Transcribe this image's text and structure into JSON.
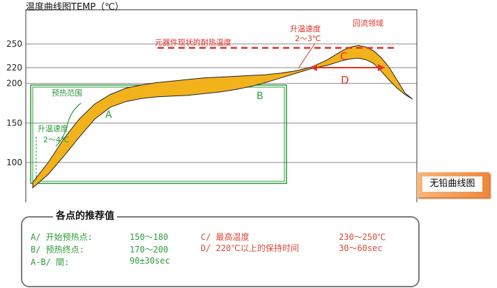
{
  "chart_data": {
    "type": "area",
    "title": "温度曲线图TEMP（℃）",
    "yticks": [
      100,
      150,
      200,
      220,
      250
    ],
    "ylim": [
      50,
      280
    ],
    "band": {
      "upper": [
        [
          0,
          75
        ],
        [
          4,
          100
        ],
        [
          8,
          130
        ],
        [
          12,
          155
        ],
        [
          16,
          174
        ],
        [
          20,
          186
        ],
        [
          24,
          194
        ],
        [
          28,
          198
        ],
        [
          32,
          201
        ],
        [
          36,
          203
        ],
        [
          40,
          205
        ],
        [
          44,
          207
        ],
        [
          48,
          208
        ],
        [
          52,
          209
        ],
        [
          56,
          210
        ],
        [
          60,
          211
        ],
        [
          64,
          213
        ],
        [
          68,
          216
        ],
        [
          72,
          221
        ],
        [
          76,
          230
        ],
        [
          78,
          236
        ],
        [
          80,
          242
        ],
        [
          82,
          246
        ],
        [
          84,
          248
        ],
        [
          86,
          246
        ],
        [
          88,
          241
        ],
        [
          90,
          232
        ],
        [
          92,
          220
        ],
        [
          94,
          204
        ],
        [
          96,
          188
        ],
        [
          98,
          180
        ]
      ],
      "lower": [
        [
          0,
          68
        ],
        [
          4,
          85
        ],
        [
          8,
          108
        ],
        [
          12,
          132
        ],
        [
          16,
          155
        ],
        [
          20,
          170
        ],
        [
          24,
          177
        ],
        [
          28,
          181
        ],
        [
          32,
          183
        ],
        [
          36,
          184
        ],
        [
          40,
          185
        ],
        [
          44,
          187
        ],
        [
          48,
          189
        ],
        [
          52,
          192
        ],
        [
          56,
          196
        ],
        [
          60,
          201
        ],
        [
          64,
          207
        ],
        [
          68,
          213
        ],
        [
          72,
          219
        ],
        [
          76,
          223
        ],
        [
          78,
          226
        ],
        [
          80,
          229
        ],
        [
          82,
          231
        ],
        [
          84,
          232
        ],
        [
          86,
          230
        ],
        [
          88,
          225
        ],
        [
          90,
          215
        ],
        [
          92,
          204
        ],
        [
          94,
          194
        ],
        [
          96,
          186
        ],
        [
          98,
          180
        ]
      ]
    },
    "heat_limit": {
      "label": "元器件现状的耐热温度",
      "value": 245
    },
    "annotations": {
      "A": "A",
      "B": "B",
      "C": "C",
      "D": "D",
      "preheat": "预热范围",
      "ramp_left_1": "升温速度",
      "ramp_left_2": "2～4℃",
      "ramp_right_1": "升温速度",
      "ramp_right_2": "2～3℃",
      "reflow": "回流领域"
    },
    "colors": {
      "fill": "#f2b21c",
      "stroke": "#222222",
      "red": "#e0302a",
      "green": "#2a9a3a"
    }
  },
  "badge": "无铅曲线图",
  "recommend": {
    "title": "各点的推荐值",
    "rows": [
      {
        "key": "A/ 开始预热点:",
        "value": "150～180"
      },
      {
        "key": "B/ 预热终点:",
        "value": "170～200"
      },
      {
        "key": "A-B/ 間:",
        "value": "90±30sec"
      }
    ],
    "rows_right": [
      {
        "key": "C/ 最高温度",
        "value": "230～250℃"
      },
      {
        "key": "D/ 220℃以上的保持时间",
        "value": "30～60sec"
      }
    ]
  }
}
